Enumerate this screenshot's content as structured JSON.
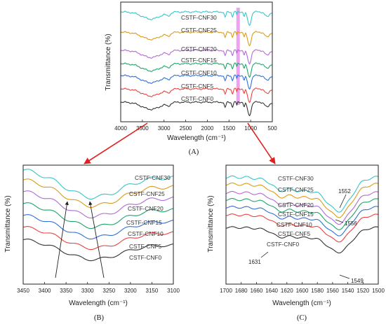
{
  "series_colors": [
    "#333333",
    "#e8433f",
    "#2f6fd9",
    "#1ea56a",
    "#b26ad6",
    "#dd9a19",
    "#38c5c9"
  ],
  "highlight_band_color": "#e055e5",
  "arrow_color": "#e02020",
  "chart_data": [
    {
      "panel": "(A)",
      "type": "line",
      "xlabel": "Wavelength (cm⁻¹)",
      "ylabel": "Transmittance (%)",
      "xlim": [
        4000,
        500
      ],
      "x_reversed": true,
      "xticks": [
        4000,
        3500,
        3000,
        2500,
        2000,
        1500,
        1000,
        500
      ],
      "highlight_band": [
        1330,
        1250
      ],
      "series_labels": [
        "CSTF-CNF0",
        "CSTF-CNF5",
        "CSTF-CNF10",
        "CSTF-CNF15",
        "CSTF-CNF20",
        "CSTF-CNF25",
        "CSTF-CNF30"
      ]
    },
    {
      "panel": "(B)",
      "type": "line",
      "xlabel": "Wavelength (cm⁻¹)",
      "ylabel": "Transmittance (%)",
      "xlim": [
        3450,
        3100
      ],
      "x_reversed": true,
      "xticks": [
        3450,
        3400,
        3350,
        3300,
        3250,
        3200,
        3150,
        3100
      ],
      "series_labels": [
        "CSTF-CNF0",
        "CSTF-CNF5",
        "CSTF-CNF10",
        "CSTF-CNF15",
        "CSTF-CNF20",
        "CSTF-CNF25",
        "CSTF-CNF30"
      ]
    },
    {
      "panel": "(C)",
      "type": "line",
      "xlabel": "Wavelength (cm⁻¹)",
      "ylabel": "Transmittance (%)",
      "xlim": [
        1700,
        1500
      ],
      "x_reversed": true,
      "xticks": [
        1700,
        1680,
        1660,
        1640,
        1620,
        1600,
        1580,
        1560,
        1540,
        1520,
        1500
      ],
      "series_labels": [
        "CSTF-CNF0",
        "CSTF-CNF5",
        "CSTF-CNF10",
        "CSTF-CNF15",
        "CSTF-CNF20",
        "CSTF-CNF25",
        "CSTF-CNF30"
      ],
      "annotations": [
        "1552",
        "1556",
        "1631",
        "1549"
      ]
    }
  ]
}
